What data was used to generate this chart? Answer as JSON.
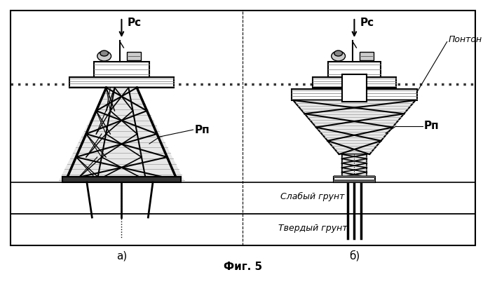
{
  "background_color": "#ffffff",
  "fig_caption": "Фиг. 5",
  "label_a": "а)",
  "label_b": "б)",
  "label_slaby": "Слабый грунт",
  "label_tverdy": "Твердый грунт",
  "label_ponton": "Понтон",
  "label_Rc": "Рс",
  "label_Rp": "Рп",
  "line_color": "#000000"
}
